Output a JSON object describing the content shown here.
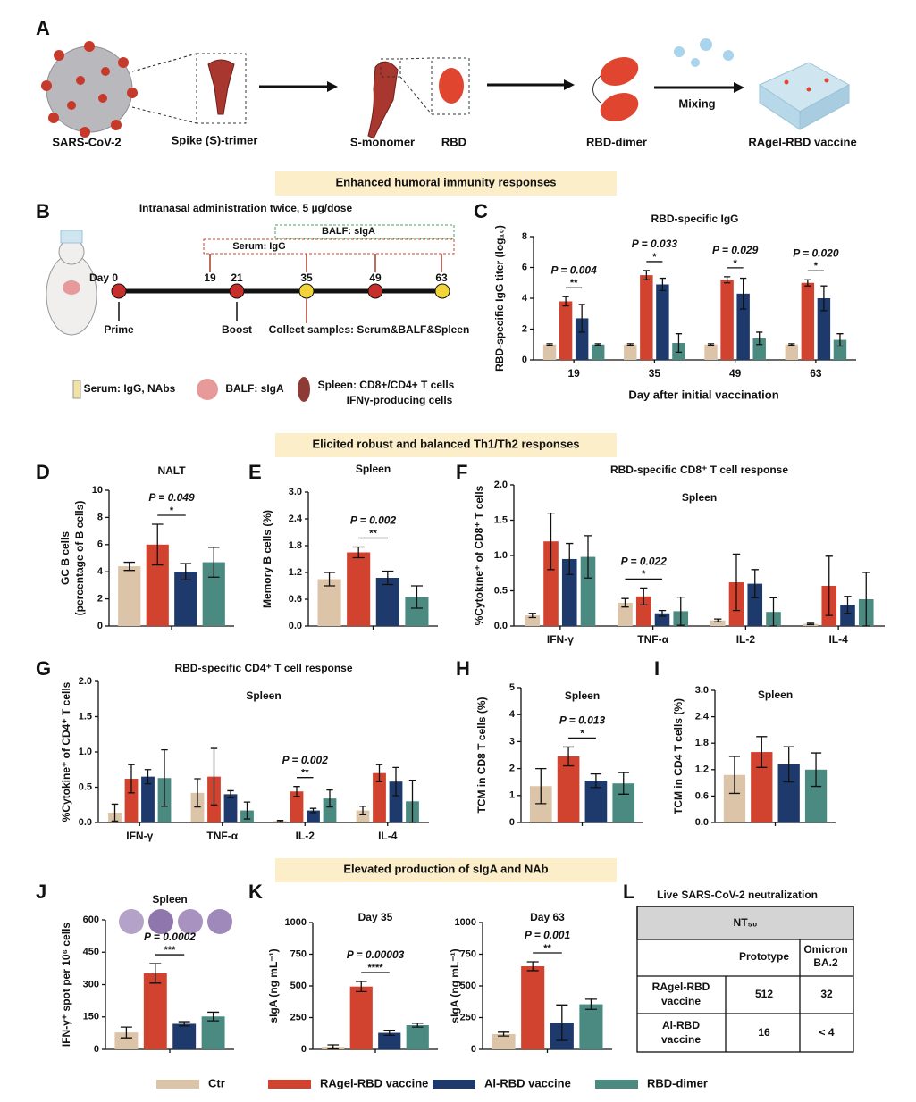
{
  "panel_labels": [
    "A",
    "B",
    "C",
    "D",
    "E",
    "F",
    "G",
    "H",
    "I",
    "J",
    "K",
    "L"
  ],
  "banners": [
    "Enhanced humoral immunity responses",
    "Elicited robust and balanced Th1/Th2 responses",
    "Elevated production of sIgA and NAb"
  ],
  "panel_a": {
    "virus": "SARS-CoV-2",
    "trimer": "Spike (S)-trimer",
    "monomer": "S-monomer",
    "rbd": "RBD",
    "dimer": "RBD-dimer",
    "mixing": "Mixing",
    "vaccine": "RAgel-RBD vaccine"
  },
  "panel_b": {
    "title": "Intranasal administration twice, 5 µg/dose",
    "balf_box": "BALF: sIgA",
    "serum_box": "Serum: IgG",
    "days": [
      "Day 0",
      "19",
      "21",
      "35",
      "49",
      "63"
    ],
    "prime": "Prime",
    "boost": "Boost",
    "collect": "Collect samples: Serum&BALF&Spleen",
    "serum": "Serum: IgG, NAbs",
    "balf": "BALF: sIgA",
    "spleen": [
      "Spleen: CD8+/CD4+ T cells",
      "IFNγ-producing cells"
    ]
  },
  "legend": [
    {
      "name": "Ctr",
      "color": "#dcc4a8"
    },
    {
      "name": "RAgel-RBD vaccine",
      "color": "#d2432f"
    },
    {
      "name": "Al-RBD vaccine",
      "color": "#1e3a6c"
    },
    {
      "name": "RBD-dimer",
      "color": "#4b8a81"
    }
  ],
  "chart_data": [
    {
      "type": "bar",
      "title": "RBD-specific IgG",
      "ylabel": [
        "RBD-specific IgG titer (log₁₀)"
      ],
      "xlabel": "Day after initial vaccination",
      "categories": [
        "19",
        "35",
        "49",
        "63"
      ],
      "ylim": [
        0,
        8
      ],
      "yticks": [
        0,
        2,
        4,
        6,
        8
      ],
      "series": [
        {
          "values": [
            1,
            1,
            1,
            1
          ],
          "errors": [
            0.05,
            0.05,
            0.05,
            0.05
          ]
        },
        {
          "values": [
            3.8,
            5.5,
            5.2,
            5.0
          ],
          "errors": [
            0.3,
            0.3,
            0.2,
            0.2
          ]
        },
        {
          "values": [
            2.7,
            4.9,
            4.3,
            4.0
          ],
          "errors": [
            0.9,
            0.4,
            1.0,
            0.8
          ]
        },
        {
          "values": [
            1,
            1.1,
            1.4,
            1.3
          ],
          "errors": [
            0.05,
            0.6,
            0.4,
            0.4
          ]
        }
      ],
      "annotations": [
        {
          "p": "P = 0.004",
          "stars": "**"
        },
        {
          "p": "P = 0.033",
          "stars": "*"
        },
        {
          "p": "P = 0.029",
          "stars": "*"
        },
        {
          "p": "P = 0.020",
          "stars": "*"
        }
      ]
    },
    {
      "type": "bar",
      "title": "NALT",
      "ylabel": [
        "GC B cells",
        "(percentage of B cells)"
      ],
      "categories": [
        null
      ],
      "ylim": [
        0,
        10
      ],
      "yticks": [
        0,
        2,
        4,
        6,
        8,
        10
      ],
      "series": [
        {
          "values": [
            4.4
          ],
          "errors": [
            0.3
          ]
        },
        {
          "values": [
            6.0
          ],
          "errors": [
            1.5
          ]
        },
        {
          "values": [
            4.0
          ],
          "errors": [
            0.6
          ]
        },
        {
          "values": [
            4.7
          ],
          "errors": [
            1.1
          ]
        }
      ],
      "annotations": [
        {
          "p": "P = 0.049",
          "stars": "*"
        }
      ]
    },
    {
      "type": "bar",
      "title": "Spleen",
      "ylabel": [
        "Memory B cells (%)"
      ],
      "categories": [
        null
      ],
      "ylim": [
        0,
        3
      ],
      "yticks": [
        {
          "value": 0,
          "label": "0.0"
        },
        0.6,
        1.2,
        1.8,
        2.4,
        {
          "value": 3,
          "label": "3.0"
        }
      ],
      "series": [
        {
          "values": [
            1.05
          ],
          "errors": [
            0.15
          ]
        },
        {
          "values": [
            1.65
          ],
          "errors": [
            0.12
          ]
        },
        {
          "values": [
            1.08
          ],
          "errors": [
            0.15
          ]
        },
        {
          "values": [
            0.65
          ],
          "errors": [
            0.25
          ]
        }
      ],
      "annotations": [
        {
          "p": "P = 0.002",
          "stars": "**"
        }
      ]
    },
    {
      "type": "bar",
      "title": "RBD-specific CD8⁺ T cell response",
      "subtitle": "Spleen",
      "ylabel": [
        "%Cytokine⁺ of CD8⁺ T cells"
      ],
      "categories": [
        "IFN-γ",
        "TNF-α",
        "IL-2",
        "IL-4"
      ],
      "ylim": [
        0,
        2
      ],
      "yticks": [
        {
          "value": 0,
          "label": "0.0"
        },
        0.5,
        {
          "value": 1,
          "label": "1.0"
        },
        1.5,
        {
          "value": 2,
          "label": "2.0"
        }
      ],
      "series": [
        {
          "values": [
            0.15,
            0.33,
            0.08,
            0.03
          ],
          "errors": [
            0.03,
            0.06,
            0.02,
            0.01
          ]
        },
        {
          "values": [
            1.2,
            0.42,
            0.62,
            0.57
          ],
          "errors": [
            0.4,
            0.12,
            0.4,
            0.42
          ]
        },
        {
          "values": [
            0.95,
            0.18,
            0.6,
            0.3
          ],
          "errors": [
            0.22,
            0.04,
            0.2,
            0.12
          ]
        },
        {
          "values": [
            0.98,
            0.21,
            0.2,
            0.38
          ],
          "errors": [
            0.3,
            0.2,
            0.2,
            0.38
          ]
        }
      ],
      "annotations": [
        {
          "p": "P = 0.022",
          "stars": "*"
        }
      ]
    },
    {
      "type": "bar",
      "title": "RBD-specific CD4⁺ T cell response",
      "subtitle": "Spleen",
      "ylabel": [
        "%Cytokine⁺ of CD4⁺ T cells"
      ],
      "categories": [
        "IFN-γ",
        "TNF-α",
        "IL-2",
        "IL-4"
      ],
      "ylim": [
        0,
        2
      ],
      "yticks": [
        {
          "value": 0,
          "label": "0.0"
        },
        0.5,
        {
          "value": 1,
          "label": "1.0"
        },
        1.5,
        {
          "value": 2,
          "label": "2.0"
        }
      ],
      "series": [
        {
          "values": [
            0.14,
            0.42,
            0.02,
            0.17
          ],
          "errors": [
            0.12,
            0.2,
            0.01,
            0.06
          ]
        },
        {
          "values": [
            0.62,
            0.65,
            0.44,
            0.7
          ],
          "errors": [
            0.2,
            0.4,
            0.07,
            0.12
          ]
        },
        {
          "values": [
            0.65,
            0.4,
            0.17,
            0.58
          ],
          "errors": [
            0.1,
            0.05,
            0.03,
            0.2
          ]
        },
        {
          "values": [
            0.63,
            0.17,
            0.34,
            0.3
          ],
          "errors": [
            0.4,
            0.12,
            0.12,
            0.3
          ]
        }
      ],
      "annotations": [
        {
          "p": "P = 0.002",
          "stars": "**"
        }
      ]
    },
    {
      "type": "bar",
      "title": "Spleen",
      "ylabel": [
        "TCM in CD8 T cells (%)"
      ],
      "categories": [
        null
      ],
      "ylim": [
        0,
        5
      ],
      "yticks": [
        0,
        1,
        2,
        3,
        4,
        5
      ],
      "series": [
        {
          "values": [
            1.35
          ],
          "errors": [
            0.65
          ]
        },
        {
          "values": [
            2.45
          ],
          "errors": [
            0.35
          ]
        },
        {
          "values": [
            1.55
          ],
          "errors": [
            0.25
          ]
        },
        {
          "values": [
            1.45
          ],
          "errors": [
            0.4
          ]
        }
      ],
      "annotations": [
        {
          "p": "P = 0.013",
          "stars": "*"
        }
      ]
    },
    {
      "type": "bar",
      "title": "Spleen",
      "ylabel": [
        "TCM in CD4 T cells (%)"
      ],
      "categories": [
        null
      ],
      "ylim": [
        0,
        3
      ],
      "yticks": [
        {
          "value": 0,
          "label": "0.0"
        },
        0.6,
        1.2,
        1.8,
        2.4,
        {
          "value": 3,
          "label": "3.0"
        }
      ],
      "series": [
        {
          "values": [
            1.08
          ],
          "errors": [
            0.42
          ]
        },
        {
          "values": [
            1.6
          ],
          "errors": [
            0.35
          ]
        },
        {
          "values": [
            1.32
          ],
          "errors": [
            0.4
          ]
        },
        {
          "values": [
            1.2
          ],
          "errors": [
            0.38
          ]
        }
      ],
      "annotations": []
    },
    {
      "type": "bar",
      "title": "Spleen",
      "ylabel": [
        "IFN-γ⁺ spot per 10⁶ cells"
      ],
      "categories": [
        null
      ],
      "ylim": [
        0,
        600
      ],
      "yticks": [
        0,
        150,
        300,
        450,
        600
      ],
      "series": [
        {
          "values": [
            78
          ],
          "errors": [
            25
          ]
        },
        {
          "values": [
            352
          ],
          "errors": [
            45
          ]
        },
        {
          "values": [
            118
          ],
          "errors": [
            10
          ]
        },
        {
          "values": [
            152
          ],
          "errors": [
            20
          ]
        }
      ],
      "annotations": [
        {
          "p": "P = 0.0002",
          "stars": "***"
        }
      ]
    },
    {
      "type": "bar",
      "title": "Day 35",
      "ylabel": [
        "sIgA (ng mL⁻¹)"
      ],
      "categories": [
        null
      ],
      "ylim": [
        0,
        1000
      ],
      "yticks": [
        0,
        250,
        500,
        750,
        1000
      ],
      "series": [
        {
          "values": [
            20
          ],
          "errors": [
            15
          ]
        },
        {
          "values": [
            495
          ],
          "errors": [
            40
          ]
        },
        {
          "values": [
            130
          ],
          "errors": [
            20
          ]
        },
        {
          "values": [
            190
          ],
          "errors": [
            15
          ]
        }
      ],
      "annotations": [
        {
          "p": "P = 0.00003",
          "stars": "****"
        }
      ]
    },
    {
      "type": "bar",
      "title": "Day 63",
      "ylabel": [
        "sIgA (ng mL⁻¹)"
      ],
      "categories": [
        null
      ],
      "ylim": [
        0,
        1000
      ],
      "yticks": [
        0,
        250,
        500,
        750,
        1000
      ],
      "series": [
        {
          "values": [
            120
          ],
          "errors": [
            15
          ]
        },
        {
          "values": [
            655
          ],
          "errors": [
            35
          ]
        },
        {
          "values": [
            210
          ],
          "errors": [
            140
          ]
        },
        {
          "values": [
            355
          ],
          "errors": [
            40
          ]
        }
      ],
      "annotations": [
        {
          "p": "P = 0.001",
          "stars": "**"
        }
      ]
    }
  ],
  "table": {
    "title": "Live SARS-CoV-2 neutralization",
    "header": "NT₅₀",
    "columns": [
      [
        "Prototype"
      ],
      [
        "Omicron",
        "BA.2"
      ]
    ],
    "rows": [
      {
        "label": [
          "RAgel-RBD",
          "vaccine"
        ],
        "cells": [
          "512",
          "32"
        ]
      },
      {
        "label": [
          "Al-RBD",
          "vaccine"
        ],
        "cells": [
          "16",
          "< 4"
        ]
      }
    ]
  }
}
